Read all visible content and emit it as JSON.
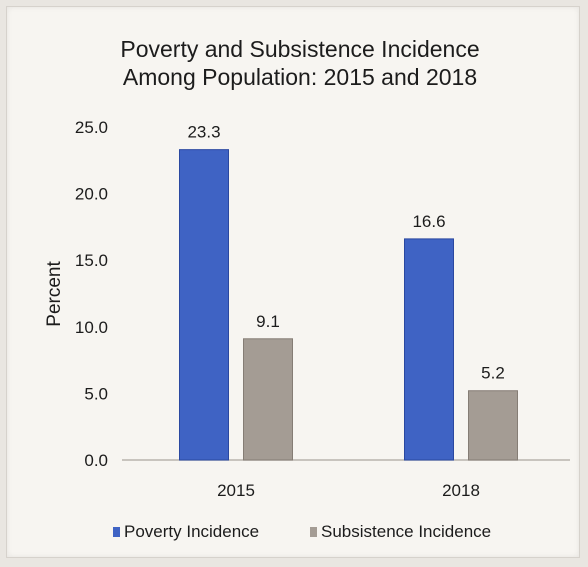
{
  "chart_data": {
    "type": "bar",
    "title_lines": [
      "Poverty and Subsistence Incidence",
      "Among Population: 2015 and 2018"
    ],
    "categories": [
      "2015",
      "2018"
    ],
    "series": [
      {
        "name": "Poverty Incidence",
        "values": [
          23.3,
          16.6
        ],
        "labels": [
          "23.3",
          "16.6"
        ],
        "color": "#3f63c4"
      },
      {
        "name": "Subsistence Incidence",
        "values": [
          9.1,
          5.2
        ],
        "labels": [
          "9.1",
          "5.2"
        ],
        "color": "#a49c94"
      }
    ],
    "ylabel": "Percent",
    "xlabel": "",
    "ylim": [
      0,
      25
    ],
    "yticks": [
      "0.0",
      "5.0",
      "10.0",
      "15.0",
      "20.0",
      "25.0"
    ],
    "grid": false,
    "legend": "bottom"
  }
}
